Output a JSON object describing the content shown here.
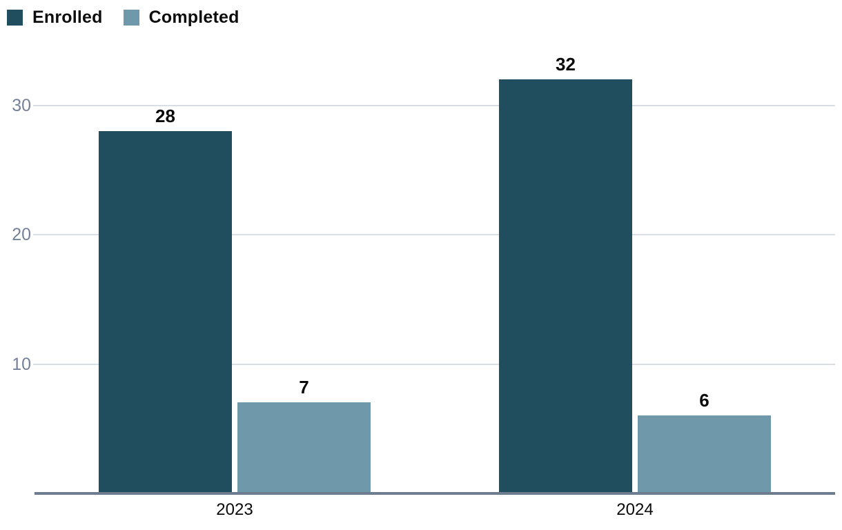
{
  "chart_data": {
    "type": "bar",
    "categories": [
      "2023",
      "2024"
    ],
    "series": [
      {
        "name": "Enrolled",
        "color": "#204E5F",
        "values": [
          28,
          32
        ]
      },
      {
        "name": "Completed",
        "color": "#6F99AA",
        "values": [
          7,
          6
        ]
      }
    ],
    "title": "",
    "xlabel": "",
    "ylabel": "",
    "ylim": [
      0,
      34
    ],
    "yticks": [
      10,
      20,
      30
    ],
    "grid": true,
    "data_labels": [
      28,
      32,
      7,
      6
    ],
    "legend_position": "top-left",
    "colors": {
      "gridline": "#D9DDE4",
      "axis_line": "#6D7C8E",
      "ytick_label": "#75819A",
      "xtick_label": "#0A0A0A",
      "value_label": "#0A0A0A"
    }
  }
}
